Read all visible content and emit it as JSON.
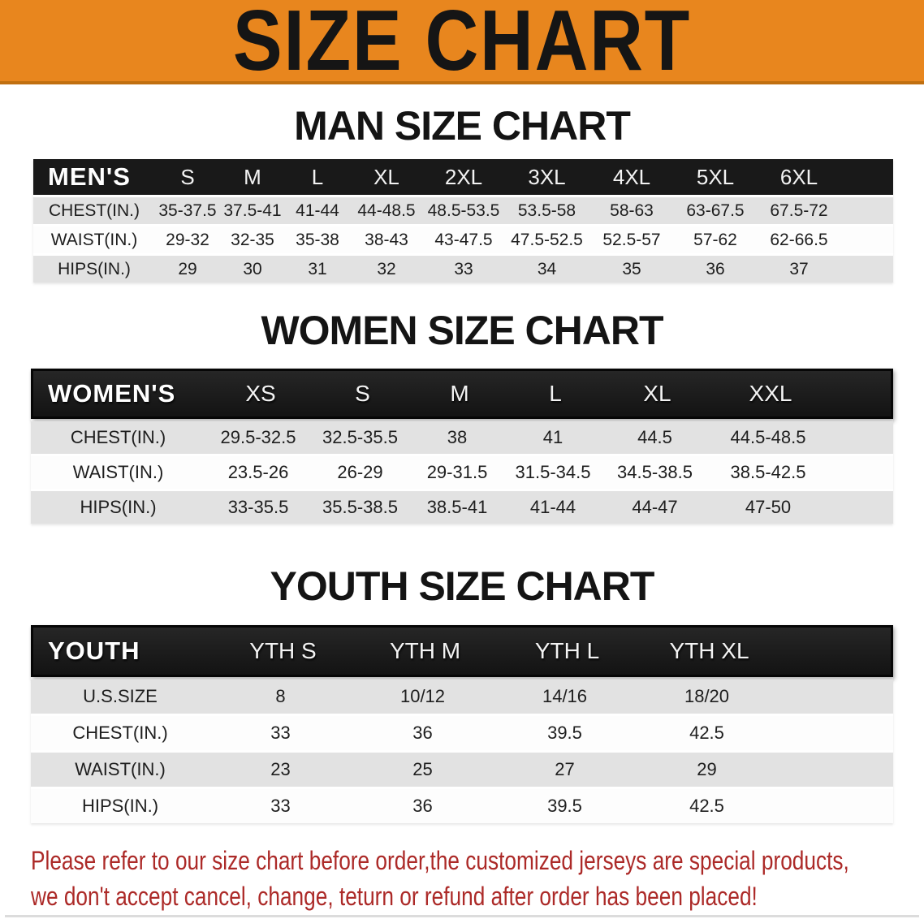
{
  "banner": {
    "title": "SIZE CHART"
  },
  "men": {
    "heading": "MAN SIZE CHART",
    "header_label": "MEN'S",
    "columns": [
      "S",
      "M",
      "L",
      "XL",
      "2XL",
      "3XL",
      "4XL",
      "5XL",
      "6XL"
    ],
    "rows": [
      {
        "label": "CHEST(IN.)",
        "values": [
          "35-37.5",
          "37.5-41",
          "41-44",
          "44-48.5",
          "48.5-53.5",
          "53.5-58",
          "58-63",
          "63-67.5",
          "67.5-72"
        ]
      },
      {
        "label": "WAIST(IN.)",
        "values": [
          "29-32",
          "32-35",
          "35-38",
          "38-43",
          "43-47.5",
          "47.5-52.5",
          "52.5-57",
          "57-62",
          "62-66.5"
        ]
      },
      {
        "label": "HIPS(IN.)",
        "values": [
          "29",
          "30",
          "31",
          "32",
          "33",
          "34",
          "35",
          "36",
          "37"
        ]
      }
    ]
  },
  "women": {
    "heading": "WOMEN SIZE CHART",
    "header_label": "WOMEN'S",
    "columns": [
      "XS",
      "S",
      "M",
      "L",
      "XL",
      "XXL"
    ],
    "rows": [
      {
        "label": "CHEST(IN.)",
        "values": [
          "29.5-32.5",
          "32.5-35.5",
          "38",
          "41",
          "44.5",
          "44.5-48.5"
        ]
      },
      {
        "label": "WAIST(IN.)",
        "values": [
          "23.5-26",
          "26-29",
          "29-31.5",
          "31.5-34.5",
          "34.5-38.5",
          "38.5-42.5"
        ]
      },
      {
        "label": "HIPS(IN.)",
        "values": [
          "33-35.5",
          "35.5-38.5",
          "38.5-41",
          "41-44",
          "44-47",
          "47-50"
        ]
      }
    ]
  },
  "youth": {
    "heading": "YOUTH SIZE CHART",
    "header_label": "YOUTH",
    "columns": [
      "YTH S",
      "YTH M",
      "YTH L",
      "YTH XL"
    ],
    "rows": [
      {
        "label": "U.S.SIZE",
        "values": [
          "8",
          "10/12",
          "14/16",
          "18/20"
        ]
      },
      {
        "label": "CHEST(IN.)",
        "values": [
          "33",
          "36",
          "39.5",
          "42.5"
        ]
      },
      {
        "label": "WAIST(IN.)",
        "values": [
          "23",
          "25",
          "27",
          "29"
        ]
      },
      {
        "label": "HIPS(IN.)",
        "values": [
          "33",
          "36",
          "39.5",
          "42.5"
        ]
      }
    ]
  },
  "disclaimer": {
    "line1": "Please refer to our size chart before order,the customized jerseys are special products,",
    "line2": "we don't accept cancel, change, teturn or refund after order has been placed!"
  },
  "colors": {
    "banner_bg": "#E8861E",
    "banner_edge": "#C06F10",
    "table_header_bg": "#191919",
    "row_gray": "#E2E2E2",
    "row_white": "#FDFDFD",
    "disclaimer_red": "#AC2A28",
    "title_text": "#151515"
  }
}
